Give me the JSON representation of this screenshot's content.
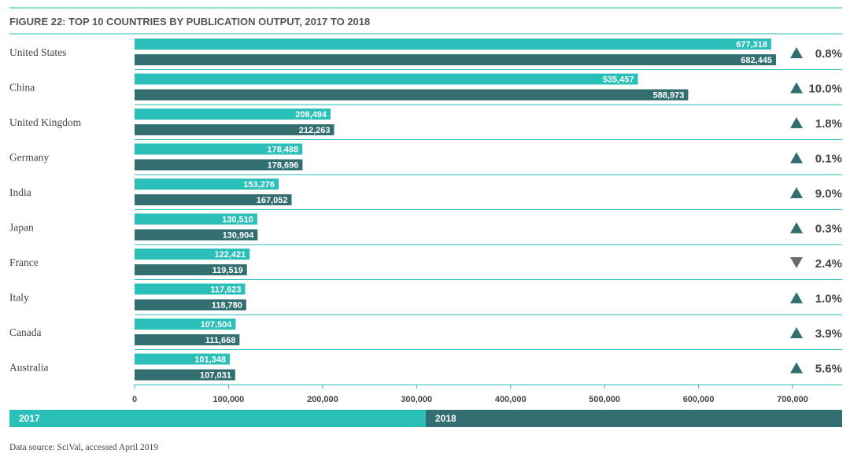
{
  "chart_data": {
    "type": "bar",
    "orientation": "horizontal",
    "title": "FIGURE 22: TOP 10 COUNTRIES BY PUBLICATION OUTPUT, 2017 TO 2018",
    "categories": [
      "United States",
      "China",
      "United Kingdom",
      "Germany",
      "India",
      "Japan",
      "France",
      "Italy",
      "Canada",
      "Australia"
    ],
    "series": [
      {
        "name": "2017",
        "color": "#2abfb8",
        "values": [
          677318,
          535457,
          208494,
          178488,
          153276,
          130510,
          122421,
          117623,
          107504,
          101348
        ],
        "labels": [
          "677,318",
          "535,457",
          "208,494",
          "178,488",
          "153,276",
          "130,510",
          "122,421",
          "117,623",
          "107,504",
          "101,348"
        ]
      },
      {
        "name": "2018",
        "color": "#336e71",
        "values": [
          682445,
          588973,
          212263,
          178696,
          167052,
          130904,
          119519,
          118780,
          111668,
          107031
        ],
        "labels": [
          "682,445",
          "588,973",
          "212,263",
          "178,696",
          "167,052",
          "130,904",
          "119,519",
          "118,780",
          "111,668",
          "107,031"
        ]
      }
    ],
    "changes": [
      {
        "direction": "up",
        "label": "0.8%"
      },
      {
        "direction": "up",
        "label": "10.0%"
      },
      {
        "direction": "up",
        "label": "1.8%"
      },
      {
        "direction": "up",
        "label": "0.1%"
      },
      {
        "direction": "up",
        "label": "9.0%"
      },
      {
        "direction": "up",
        "label": "0.3%"
      },
      {
        "direction": "down",
        "label": "2.4%"
      },
      {
        "direction": "up",
        "label": "1.0%"
      },
      {
        "direction": "up",
        "label": "3.9%"
      },
      {
        "direction": "up",
        "label": "5.6%"
      }
    ],
    "xlim": [
      0,
      700000
    ],
    "xticks": [
      0,
      100000,
      200000,
      300000,
      400000,
      500000,
      600000,
      700000
    ],
    "xtick_labels": [
      "0",
      "100,000",
      "200,000",
      "300,000",
      "400,000",
      "500,000",
      "600,000",
      "700,000"
    ],
    "legend": {
      "position": "bottom",
      "items": [
        "2017",
        "2018"
      ]
    },
    "grid": false,
    "accent_line_color": "#2abfb8",
    "arrow_color": "#336e71",
    "source": "Data source: SciVal, accessed April 2019"
  }
}
